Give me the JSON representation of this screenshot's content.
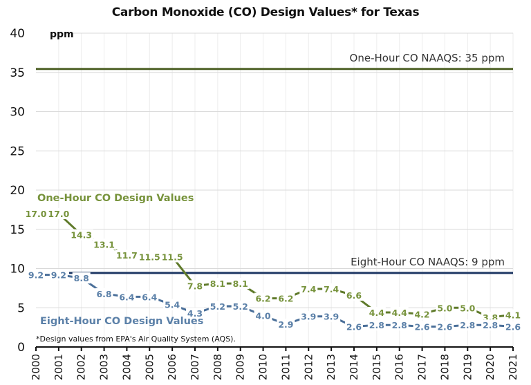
{
  "chart_data": {
    "type": "line",
    "title": "Carbon Monoxide (CO) Design Values* for Texas",
    "xlabel": "",
    "ylabel": "ppm",
    "ylim": [
      0,
      40
    ],
    "yticks": [
      0,
      5,
      10,
      15,
      20,
      25,
      30,
      35,
      40
    ],
    "grid": true,
    "x": [
      "2000",
      "2001",
      "2002",
      "2003",
      "2004",
      "2005",
      "2006",
      "2007",
      "2008",
      "2009",
      "2010",
      "2011",
      "2012",
      "2013",
      "2014",
      "2015",
      "2016",
      "2017",
      "2018",
      "2019",
      "2020",
      "2021"
    ],
    "series": [
      {
        "name": "One-Hour CO Design Values",
        "color": "#77933c",
        "line_color": "#5f7a2a",
        "values": [
          17.0,
          17.0,
          14.3,
          13.1,
          11.7,
          11.5,
          11.5,
          7.8,
          8.1,
          8.1,
          6.2,
          6.2,
          7.4,
          7.4,
          6.6,
          4.4,
          4.4,
          4.2,
          5.0,
          5.0,
          3.8,
          4.1
        ],
        "labels": [
          "17.0",
          "17.0",
          "14.3",
          "13.1",
          "11.7",
          "11.5",
          "11.5",
          "7.8",
          "8.1",
          "8.1",
          "6.2",
          "6.2",
          "7.4",
          "7.4",
          "6.6",
          "4.4",
          "4.4",
          "4.2",
          "5.0",
          "5.0",
          "3.8",
          "4.1"
        ]
      },
      {
        "name": "Eight-Hour CO Design Values",
        "color": "#5b80a8",
        "line_color": "#4a6f99",
        "values": [
          9.2,
          9.2,
          8.8,
          6.8,
          6.4,
          6.4,
          5.4,
          4.3,
          5.2,
          5.2,
          4.0,
          2.9,
          3.9,
          3.9,
          2.6,
          2.8,
          2.8,
          2.6,
          2.6,
          2.8,
          2.8,
          2.6
        ],
        "labels": [
          "9.2",
          "9.2",
          "8.8",
          "6.8",
          "6.4",
          "6.4",
          "5.4",
          "4.3",
          "5.2",
          "5.2",
          "4.0",
          "2.9",
          "3.9",
          "3.9",
          "2.6",
          "2.8",
          "2.8",
          "2.6",
          "2.6",
          "2.8",
          "2.8",
          "2.6"
        ]
      }
    ],
    "reference_lines": [
      {
        "name": "One-Hour CO NAAQS",
        "value": 35,
        "label": "One-Hour CO NAAQS: 35 ppm",
        "color": "#4f6228"
      },
      {
        "name": "Eight-Hour CO NAAQS",
        "value": 9,
        "label": "Eight-Hour CO NAAQS: 9 ppm",
        "color": "#1f3864"
      }
    ],
    "annotations": {
      "series1_label": "One-Hour CO Design Values",
      "series8_label": "Eight-Hour CO Design Values",
      "footnote": "*Design values from EPA's Air Quality System (AQS)."
    },
    "legend": "none (inline series labels)"
  }
}
